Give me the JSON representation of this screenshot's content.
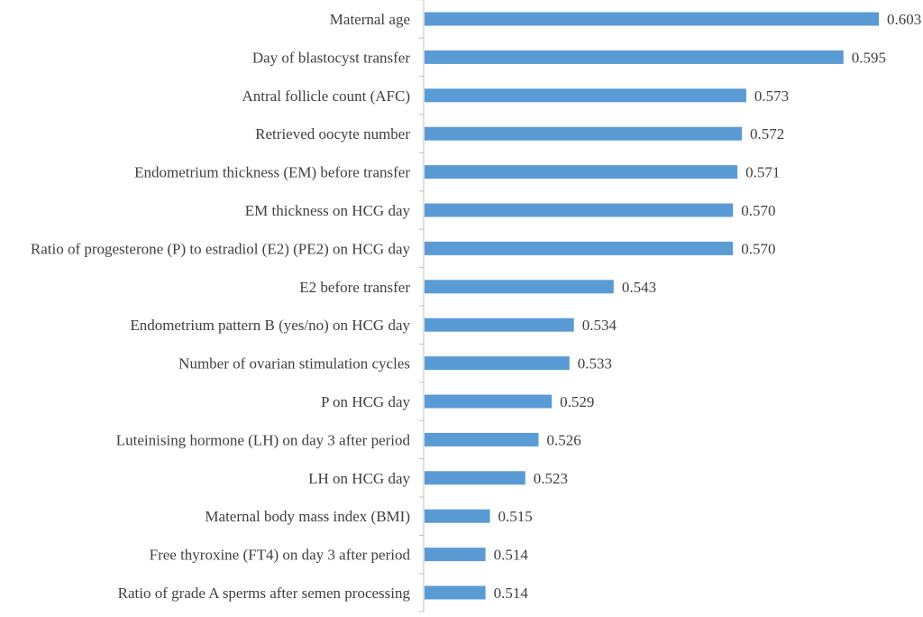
{
  "chart_data": {
    "type": "bar",
    "orientation": "horizontal",
    "title": "",
    "xlabel": "",
    "ylabel": "",
    "grid": false,
    "legend": "none",
    "bar_color": "#5b9bd5",
    "text_color": "#404040",
    "axis_color": "#bfbfbf",
    "xlim": [
      0.5,
      0.603
    ],
    "categories": [
      "Maternal age",
      "Day of blastocyst transfer",
      "Antral follicle count (AFC)",
      "Retrieved oocyte number",
      "Endometrium thickness (EM) before transfer",
      "EM thickness on HCG day",
      "Ratio of progesterone (P) to estradiol (E2) (PE2) on HCG day",
      "E2 before transfer",
      "Endometrium pattern B (yes/no) on HCG day",
      "Number of ovarian stimulation cycles",
      "P on HCG day",
      "Luteinising hormone (LH) on day 3 after period",
      "LH on HCG day",
      "Maternal body mass index (BMI)",
      "Free thyroxine (FT4) on day 3 after period",
      "Ratio of grade A sperms after semen processing"
    ],
    "values": [
      0.603,
      0.595,
      0.573,
      0.572,
      0.571,
      0.57,
      0.57,
      0.543,
      0.534,
      0.533,
      0.529,
      0.526,
      0.523,
      0.515,
      0.514,
      0.514
    ],
    "value_labels": [
      "0.603",
      "0.595",
      "0.573",
      "0.572",
      "0.571",
      "0.570",
      "0.570",
      "0.543",
      "0.534",
      "0.533",
      "0.529",
      "0.526",
      "0.523",
      "0.515",
      "0.514",
      "0.514"
    ]
  }
}
